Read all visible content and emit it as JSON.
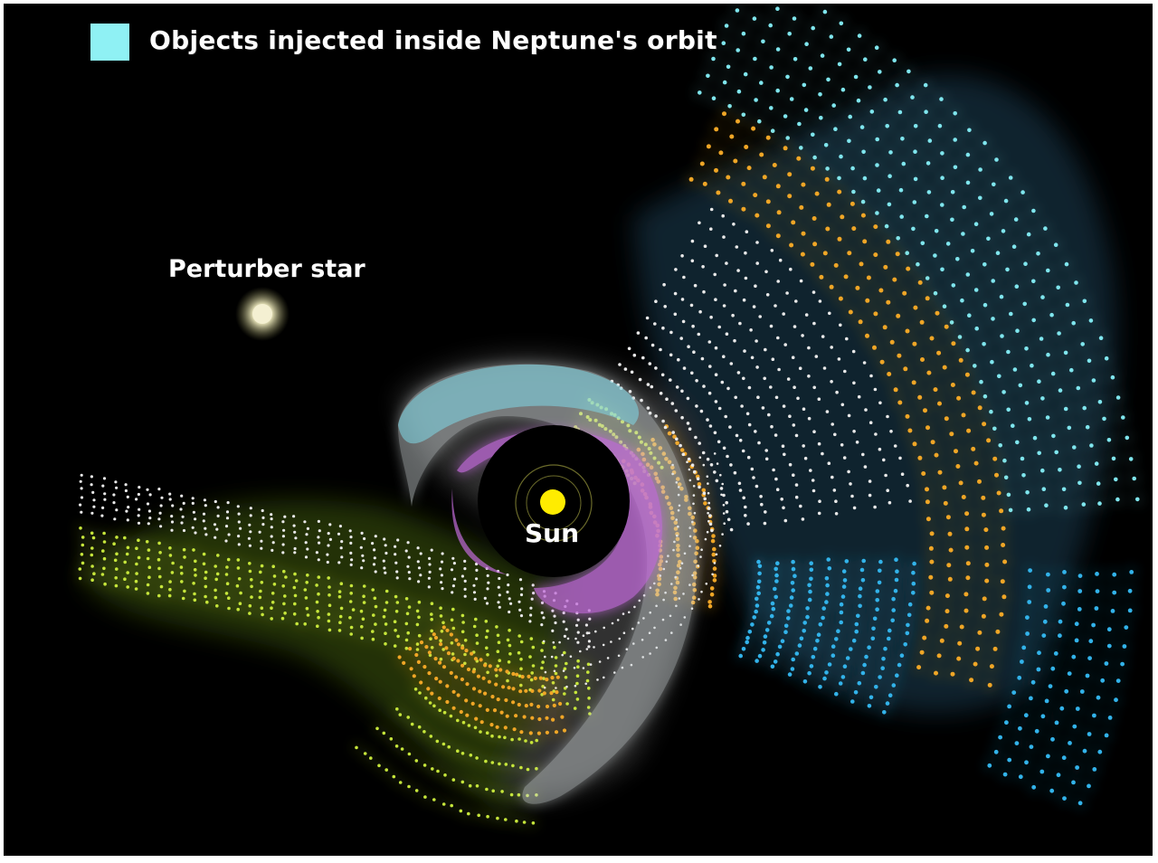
{
  "legend": {
    "label": "Objects injected inside Neptune's orbit",
    "swatch_color": "#8ff1f4"
  },
  "labels": {
    "perturber": "Perturber star",
    "sun": "Sun"
  },
  "colors": {
    "background": "#000000",
    "cyan": "#7fe6ee",
    "blue": "#33b3ea",
    "orange": "#f0a626",
    "white": "#e9e9e9",
    "green": "#c6e63a",
    "purple": "#c06bd8",
    "sun": "#ffec00",
    "star": "#e9e6c2"
  }
}
